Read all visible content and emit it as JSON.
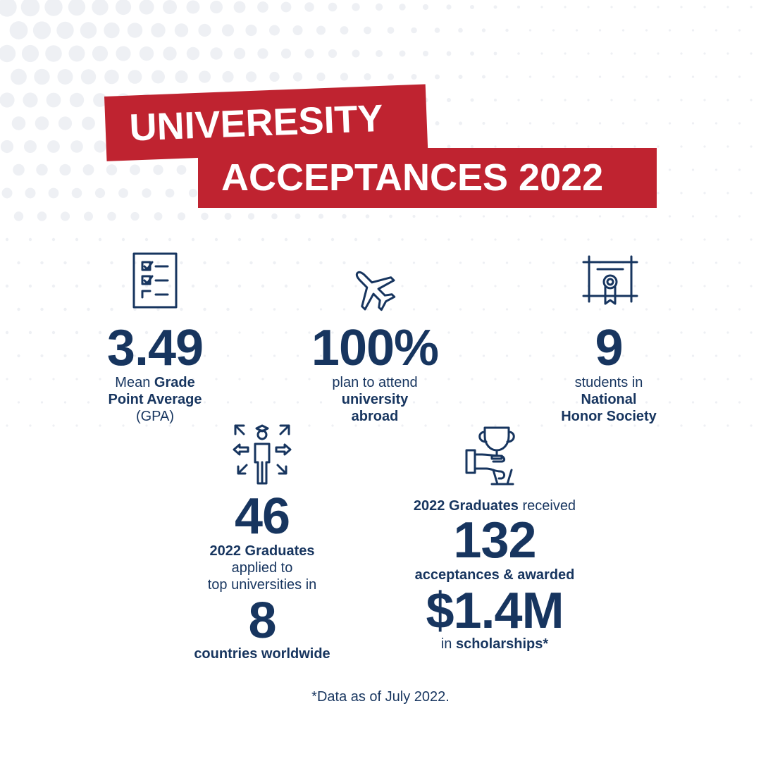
{
  "title": {
    "line1": "UNIVERESITY",
    "line2": "ACCEPTANCES 2022"
  },
  "colors": {
    "banner": "#bf2330",
    "navy": "#17355f",
    "dots": "#eef0f4",
    "background": "#ffffff"
  },
  "stats": {
    "gpa": {
      "icon": "checklist-icon",
      "value": "3.49",
      "cap_a": "Mean ",
      "cap_b": "Grade",
      "cap_c": "Point Average",
      "cap_d": "(GPA)"
    },
    "abroad": {
      "icon": "airplane-icon",
      "value": "100%",
      "cap_a": "plan to attend",
      "cap_b": "university",
      "cap_c": "abroad"
    },
    "honor": {
      "icon": "certificate-icon",
      "value": "9",
      "cap_a": "students in",
      "cap_b": "National",
      "cap_c": "Honor Society"
    },
    "applied": {
      "icon": "graduate-arrows-icon",
      "value": "46",
      "cap_a": "2022 Graduates",
      "cap_b": "applied to",
      "cap_c": "top universities in",
      "value2": "8",
      "cap_d": "countries worldwide"
    },
    "acceptances": {
      "icon": "trophy-hand-icon",
      "cap_a": "2022 Graduates",
      "cap_b": " received",
      "value": "132",
      "cap_c": "acceptances & awarded",
      "value2": "$1.4M",
      "cap_d": "in ",
      "cap_e": "scholarships*"
    }
  },
  "footnote": "*Data as of July 2022."
}
